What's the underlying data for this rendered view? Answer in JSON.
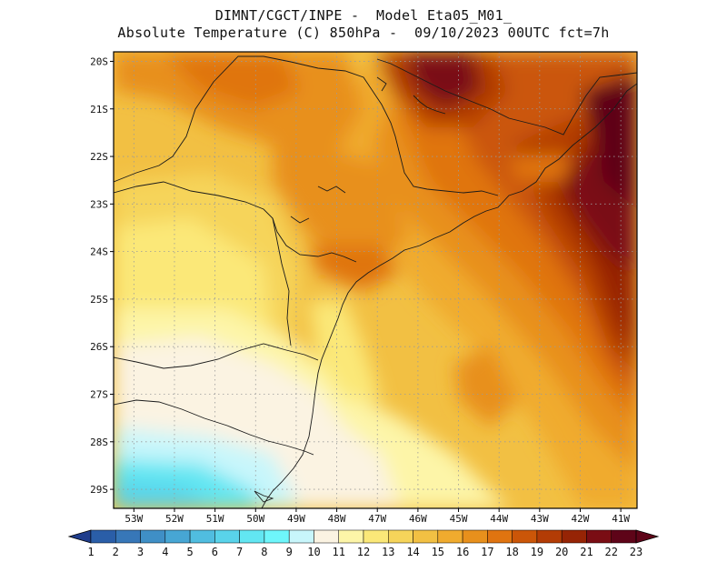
{
  "title": {
    "line1": "DIMNT/CGCT/INPE -  Model Eta05_M01_",
    "line2": "Absolute Temperature (C) 850hPa -  09/10/2023 00UTC fct=7h"
  },
  "map": {
    "lat_ticks": [
      "20S",
      "21S",
      "22S",
      "23S",
      "24S",
      "25S",
      "26S",
      "27S",
      "28S",
      "29S"
    ],
    "lon_ticks": [
      "53W",
      "52W",
      "51W",
      "50W",
      "49W",
      "48W",
      "47W",
      "46W",
      "45W",
      "44W",
      "43W",
      "42W",
      "41W"
    ],
    "grid": true,
    "lon_range": [
      -53.5,
      -40.6
    ],
    "lat_range": [
      -29.4,
      -19.8
    ]
  },
  "colorbar": {
    "labels": [
      "1",
      "2",
      "3",
      "4",
      "5",
      "6",
      "7",
      "8",
      "9",
      "10",
      "11",
      "12",
      "13",
      "14",
      "15",
      "16",
      "17",
      "18",
      "19",
      "20",
      "21",
      "22",
      "23"
    ],
    "colors": [
      "#1f3d8c",
      "#2a5ea8",
      "#3777b8",
      "#3f8fc6",
      "#47a6d4",
      "#50bde0",
      "#59d3ea",
      "#62e6f2",
      "#6ef6fb",
      "#c8f6fb",
      "#fbf3e2",
      "#fdf5a8",
      "#fbe878",
      "#f6d45a",
      "#f2c043",
      "#f0ab2e",
      "#e8901c",
      "#e07410",
      "#cb5608",
      "#b33c05",
      "#962405",
      "#7a0d14",
      "#5e0418"
    ],
    "left_end_color": "#1f3d8c",
    "right_end_color": "#5e0418"
  }
}
